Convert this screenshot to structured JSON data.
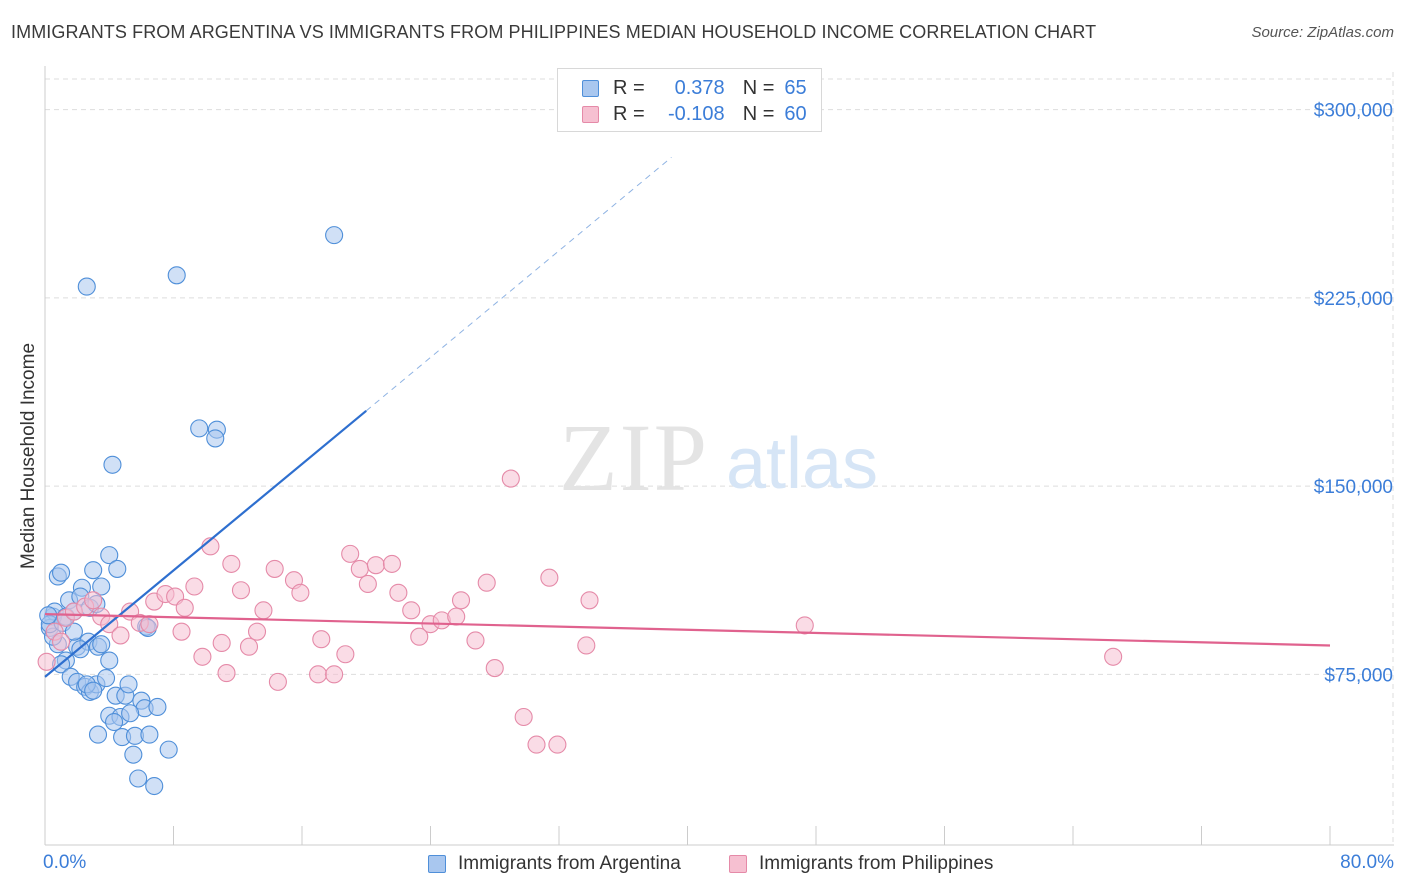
{
  "title": "IMMIGRANTS FROM ARGENTINA VS IMMIGRANTS FROM PHILIPPINES MEDIAN HOUSEHOLD INCOME CORRELATION CHART",
  "source": "Source: ZipAtlas.com",
  "watermark": {
    "zip": "ZIP",
    "atlas": "atlas"
  },
  "legend": {
    "argentina": {
      "r_label": "R =",
      "r_value": "0.378",
      "n_label": "N =",
      "n_value": "65"
    },
    "philippines": {
      "r_label": "R =",
      "r_value": "-0.108",
      "n_label": "N =",
      "n_value": "60"
    }
  },
  "colors": {
    "argentina_fill": "#a9c7ef",
    "argentina_stroke": "#4f8fd9",
    "argentina_line": "#2e6fcf",
    "philippines_fill": "#f6c0d1",
    "philippines_stroke": "#e58aa8",
    "philippines_line": "#e0628e",
    "axis_label": "#3b7dd8",
    "grid": "#dddddd"
  },
  "chart_data": {
    "type": "scatter",
    "title": "IMMIGRANTS FROM ARGENTINA VS IMMIGRANTS FROM PHILIPPINES MEDIAN HOUSEHOLD INCOME CORRELATION CHART",
    "xlabel": "",
    "ylabel": "Median Household Income",
    "xlim": [
      0,
      80
    ],
    "ylim": [
      7000,
      315000
    ],
    "x_tick_labels": [
      "0.0%",
      "80.0%"
    ],
    "y_ticks": [
      {
        "value": 75000,
        "label": "$75,000"
      },
      {
        "value": 150000,
        "label": "$150,000"
      },
      {
        "value": 225000,
        "label": "$225,000"
      },
      {
        "value": 300000,
        "label": "$300,000"
      }
    ],
    "grid": true,
    "series": [
      {
        "name": "Immigrants from Argentina",
        "color": "#a9c7ef",
        "points": [
          [
            2.6,
            229500
          ],
          [
            8.2,
            234000
          ],
          [
            18.0,
            250000
          ],
          [
            9.6,
            173000
          ],
          [
            10.7,
            172500
          ],
          [
            10.6,
            169000
          ],
          [
            4.2,
            158500
          ],
          [
            0.5,
            98000
          ],
          [
            0.3,
            93500
          ],
          [
            0.6,
            100000
          ],
          [
            0.8,
            114000
          ],
          [
            1.0,
            115500
          ],
          [
            1.3,
            98000
          ],
          [
            0.8,
            87000
          ],
          [
            0.5,
            90000
          ],
          [
            1.5,
            104500
          ],
          [
            1.8,
            100000
          ],
          [
            2.0,
            86000
          ],
          [
            2.3,
            109500
          ],
          [
            2.2,
            106000
          ],
          [
            2.8,
            101500
          ],
          [
            2.7,
            88000
          ],
          [
            3.3,
            86000
          ],
          [
            3.0,
            116500
          ],
          [
            3.5,
            110000
          ],
          [
            4.0,
            122500
          ],
          [
            4.5,
            117000
          ],
          [
            3.2,
            103000
          ],
          [
            3.5,
            87000
          ],
          [
            1.3,
            80500
          ],
          [
            1.0,
            79000
          ],
          [
            1.6,
            74000
          ],
          [
            2.0,
            72000
          ],
          [
            2.5,
            70000
          ],
          [
            2.8,
            68000
          ],
          [
            3.2,
            71000
          ],
          [
            3.8,
            73500
          ],
          [
            4.0,
            80500
          ],
          [
            4.4,
            66500
          ],
          [
            5.0,
            66500
          ],
          [
            5.2,
            71000
          ],
          [
            6.0,
            64500
          ],
          [
            6.2,
            61500
          ],
          [
            7.0,
            62000
          ],
          [
            7.7,
            45000
          ],
          [
            3.3,
            51000
          ],
          [
            4.0,
            58500
          ],
          [
            4.7,
            58000
          ],
          [
            5.3,
            59500
          ],
          [
            4.8,
            50000
          ],
          [
            5.6,
            50500
          ],
          [
            6.5,
            51000
          ],
          [
            5.5,
            43000
          ],
          [
            5.8,
            33500
          ],
          [
            6.8,
            30500
          ],
          [
            6.3,
            94000
          ],
          [
            6.4,
            93500
          ],
          [
            2.2,
            85000
          ],
          [
            0.3,
            95000
          ],
          [
            1.1,
            95500
          ],
          [
            2.6,
            71000
          ],
          [
            3.0,
            68500
          ],
          [
            4.3,
            56000
          ],
          [
            1.8,
            92000
          ],
          [
            0.2,
            98500
          ]
        ]
      },
      {
        "name": "Immigrants from Philippines",
        "color": "#f6c0d1",
        "points": [
          [
            0.1,
            80000
          ],
          [
            0.6,
            92000
          ],
          [
            1.0,
            88000
          ],
          [
            1.3,
            97500
          ],
          [
            1.8,
            100000
          ],
          [
            2.5,
            102000
          ],
          [
            3.0,
            104500
          ],
          [
            3.5,
            98000
          ],
          [
            4.0,
            95000
          ],
          [
            4.7,
            90500
          ],
          [
            5.3,
            100000
          ],
          [
            5.9,
            95500
          ],
          [
            6.5,
            95000
          ],
          [
            6.8,
            104000
          ],
          [
            7.5,
            107000
          ],
          [
            8.1,
            106000
          ],
          [
            8.5,
            92000
          ],
          [
            8.7,
            101500
          ],
          [
            9.3,
            110000
          ],
          [
            9.8,
            82000
          ],
          [
            10.3,
            126000
          ],
          [
            11.0,
            87500
          ],
          [
            11.3,
            75500
          ],
          [
            11.6,
            119000
          ],
          [
            12.2,
            108500
          ],
          [
            12.7,
            86000
          ],
          [
            13.2,
            92000
          ],
          [
            13.6,
            100500
          ],
          [
            14.3,
            117000
          ],
          [
            14.5,
            72000
          ],
          [
            15.5,
            112500
          ],
          [
            15.9,
            107500
          ],
          [
            17.2,
            89000
          ],
          [
            17.0,
            75000
          ],
          [
            18.0,
            75000
          ],
          [
            18.7,
            83000
          ],
          [
            19.0,
            123000
          ],
          [
            19.6,
            117000
          ],
          [
            20.1,
            111000
          ],
          [
            20.6,
            118500
          ],
          [
            21.6,
            119000
          ],
          [
            22.0,
            107500
          ],
          [
            22.8,
            100500
          ],
          [
            23.3,
            90000
          ],
          [
            24.0,
            95000
          ],
          [
            24.7,
            96500
          ],
          [
            25.6,
            98000
          ],
          [
            25.9,
            104500
          ],
          [
            26.8,
            88500
          ],
          [
            27.5,
            111500
          ],
          [
            28.0,
            77500
          ],
          [
            29.8,
            58000
          ],
          [
            30.6,
            47000
          ],
          [
            31.4,
            113500
          ],
          [
            31.9,
            47000
          ],
          [
            29.0,
            153000
          ],
          [
            33.9,
            104500
          ],
          [
            33.7,
            86500
          ],
          [
            47.3,
            94500
          ],
          [
            66.5,
            82000
          ]
        ]
      }
    ],
    "trend_lines": [
      {
        "series": "Immigrants from Argentina",
        "solid": [
          [
            0,
            74000
          ],
          [
            20,
            180000
          ]
        ],
        "dashed": [
          [
            20,
            180000
          ],
          [
            39,
            281000
          ]
        ]
      },
      {
        "series": "Immigrants from Philippines",
        "solid": [
          [
            0,
            99000
          ],
          [
            80,
            86500
          ]
        ]
      }
    ]
  },
  "bottom_legend": {
    "argentina_label": "Immigrants from Argentina",
    "philippines_label": "Immigrants from Philippines"
  }
}
